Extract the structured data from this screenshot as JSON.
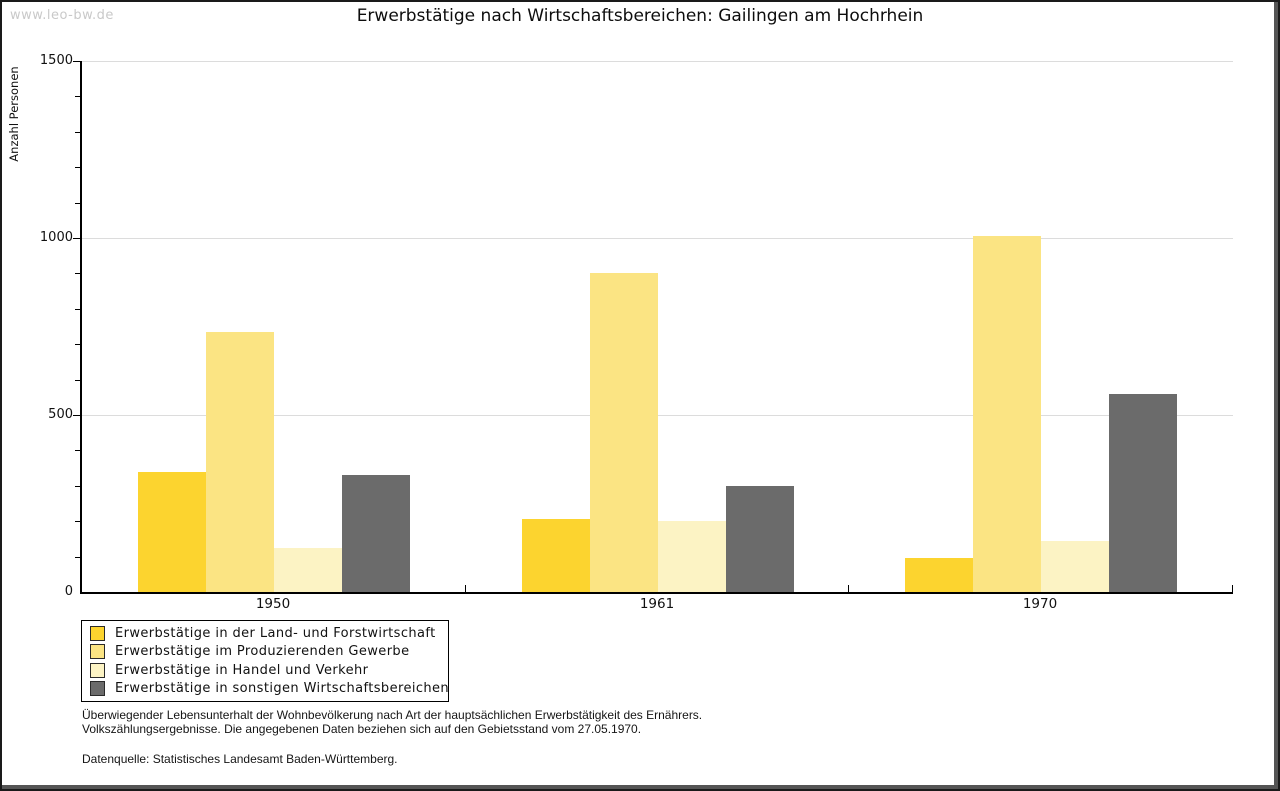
{
  "watermark": "www.leo-bw.de",
  "title": "Erwerbstätige nach Wirtschaftsbereichen: Gailingen am Hochrhein",
  "chart_data": {
    "type": "bar",
    "title": "Erwerbstätige nach Wirtschaftsbereichen: Gailingen am Hochrhein",
    "xlabel": "",
    "ylabel": "Anzahl Personen",
    "ylim": [
      0,
      1500
    ],
    "ytick_major": [
      0,
      500,
      1000,
      1500
    ],
    "ytick_minor_step": 100,
    "grid": "horizontal-major",
    "legend_position": "bottom-left",
    "categories": [
      "1950",
      "1961",
      "1970"
    ],
    "series": [
      {
        "name": "Erwerbstätige in der Land- und Forstwirtschaft",
        "color": "#FCD42F",
        "values": [
          340,
          205,
          95
        ]
      },
      {
        "name": "Erwerbstätige im Produzierenden Gewerbe",
        "color": "#FBE483",
        "values": [
          735,
          900,
          1005
        ]
      },
      {
        "name": "Erwerbstätige in Handel und Verkehr",
        "color": "#FCF3C4",
        "values": [
          125,
          200,
          145
        ]
      },
      {
        "name": "Erwerbstätige in sonstigen Wirtschaftsbereichen",
        "color": "#6B6B6B",
        "values": [
          330,
          300,
          560
        ]
      }
    ]
  },
  "footnotes": {
    "line1": "Überwiegender Lebensunterhalt der Wohnbevölkerung nach Art der hauptsächlichen Erwerbstätigkeit des Ernährers.",
    "line2": "Volkszählungsergebnisse. Die angegebenen Daten beziehen sich auf den Gebietsstand vom 27.05.1970.",
    "source": "Datenquelle: Statistisches Landesamt Baden-Württemberg."
  },
  "colors": {
    "grid": "#DCDCDC",
    "axis": "#000000",
    "watermark": "#C9C9C9",
    "background": "#FFFFFF",
    "frame": "#1A1A1A"
  }
}
